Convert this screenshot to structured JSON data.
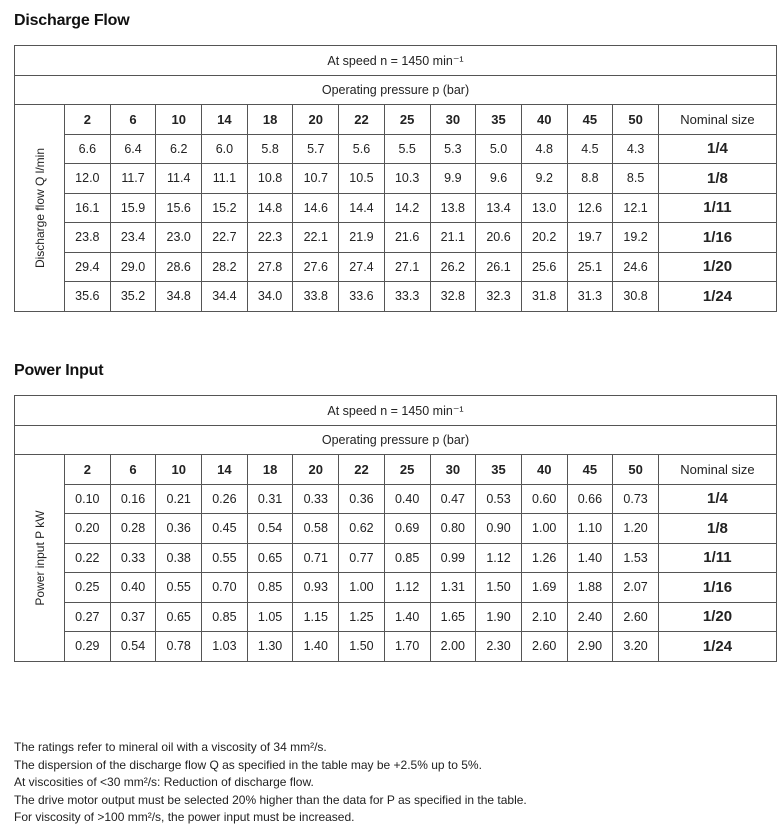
{
  "pressures": [
    "2",
    "6",
    "10",
    "14",
    "18",
    "20",
    "22",
    "25",
    "30",
    "35",
    "40",
    "45",
    "50"
  ],
  "nominal_label": "Nominal size",
  "speed_label": "At speed n = 1450 min⁻¹",
  "pressure_label": "Operating pressure p (bar)",
  "tables": [
    {
      "title": "Discharge Flow",
      "side_label": "Discharge flow Q l/min",
      "rows": [
        {
          "size": "1/4",
          "values": [
            "6.6",
            "6.4",
            "6.2",
            "6.0",
            "5.8",
            "5.7",
            "5.6",
            "5.5",
            "5.3",
            "5.0",
            "4.8",
            "4.5",
            "4.3"
          ]
        },
        {
          "size": "1/8",
          "values": [
            "12.0",
            "11.7",
            "11.4",
            "11.1",
            "10.8",
            "10.7",
            "10.5",
            "10.3",
            "9.9",
            "9.6",
            "9.2",
            "8.8",
            "8.5"
          ]
        },
        {
          "size": "1/11",
          "values": [
            "16.1",
            "15.9",
            "15.6",
            "15.2",
            "14.8",
            "14.6",
            "14.4",
            "14.2",
            "13.8",
            "13.4",
            "13.0",
            "12.6",
            "12.1"
          ]
        },
        {
          "size": "1/16",
          "values": [
            "23.8",
            "23.4",
            "23.0",
            "22.7",
            "22.3",
            "22.1",
            "21.9",
            "21.6",
            "21.1",
            "20.6",
            "20.2",
            "19.7",
            "19.2"
          ]
        },
        {
          "size": "1/20",
          "values": [
            "29.4",
            "29.0",
            "28.6",
            "28.2",
            "27.8",
            "27.6",
            "27.4",
            "27.1",
            "26.2",
            "26.1",
            "25.6",
            "25.1",
            "24.6"
          ]
        },
        {
          "size": "1/24",
          "values": [
            "35.6",
            "35.2",
            "34.8",
            "34.4",
            "34.0",
            "33.8",
            "33.6",
            "33.3",
            "32.8",
            "32.3",
            "31.8",
            "31.3",
            "30.8"
          ]
        }
      ]
    },
    {
      "title": "Power Input",
      "side_label": "Power input P kW",
      "rows": [
        {
          "size": "1/4",
          "values": [
            "0.10",
            "0.16",
            "0.21",
            "0.26",
            "0.31",
            "0.33",
            "0.36",
            "0.40",
            "0.47",
            "0.53",
            "0.60",
            "0.66",
            "0.73"
          ]
        },
        {
          "size": "1/8",
          "values": [
            "0.20",
            "0.28",
            "0.36",
            "0.45",
            "0.54",
            "0.58",
            "0.62",
            "0.69",
            "0.80",
            "0.90",
            "1.00",
            "1.10",
            "1.20"
          ]
        },
        {
          "size": "1/11",
          "values": [
            "0.22",
            "0.33",
            "0.38",
            "0.55",
            "0.65",
            "0.71",
            "0.77",
            "0.85",
            "0.99",
            "1.12",
            "1.26",
            "1.40",
            "1.53"
          ]
        },
        {
          "size": "1/16",
          "values": [
            "0.25",
            "0.40",
            "0.55",
            "0.70",
            "0.85",
            "0.93",
            "1.00",
            "1.12",
            "1.31",
            "1.50",
            "1.69",
            "1.88",
            "2.07"
          ]
        },
        {
          "size": "1/20",
          "values": [
            "0.27",
            "0.37",
            "0.65",
            "0.85",
            "1.05",
            "1.15",
            "1.25",
            "1.40",
            "1.65",
            "1.90",
            "2.10",
            "2.40",
            "2.60"
          ]
        },
        {
          "size": "1/24",
          "values": [
            "0.29",
            "0.54",
            "0.78",
            "1.03",
            "1.30",
            "1.40",
            "1.50",
            "1.70",
            "2.00",
            "2.30",
            "2.60",
            "2.90",
            "3.20"
          ]
        }
      ]
    }
  ],
  "notes": [
    "The ratings refer to mineral oil with a viscosity of 34 mm²/s.",
    "The dispersion of the discharge flow Q as specified in the table may be +2.5% up to 5%.",
    "At viscosities of <30 mm²/s: Reduction of discharge flow.",
    "The drive motor output must be selected 20% higher than the data for P as specified in the table.",
    "For viscosity of >100 mm²/s, the power input must be increased."
  ]
}
